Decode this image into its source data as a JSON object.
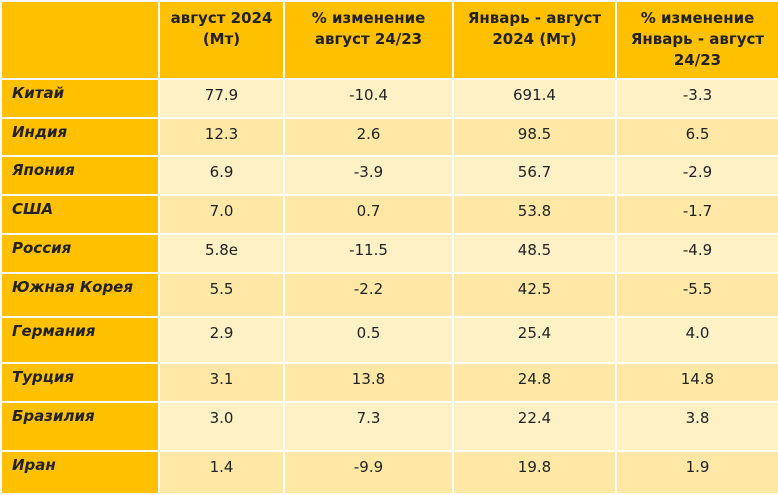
{
  "table": {
    "headers": [
      "август 2024 (Мт)",
      "% изменение август 24/23",
      "Январь - август 2024 (Мт)",
      "% изменение Январь - август 24/23"
    ],
    "rows": [
      {
        "name": "Китай",
        "cells": [
          "77.9",
          "-10.4",
          "691.4",
          "-3.3"
        ]
      },
      {
        "name": "Индия",
        "cells": [
          "12.3",
          "2.6",
          "98.5",
          "6.5"
        ]
      },
      {
        "name": "Япония",
        "cells": [
          "6.9",
          "-3.9",
          "56.7",
          "-2.9"
        ]
      },
      {
        "name": "США",
        "cells": [
          "7.0",
          "0.7",
          "53.8",
          "-1.7"
        ]
      },
      {
        "name": "Россия",
        "cells": [
          "5.8e",
          "-11.5",
          "48.5",
          "-4.9"
        ]
      },
      {
        "name": "Южная Корея",
        "cells": [
          "5.5",
          "-2.2",
          "42.5",
          "-5.5"
        ]
      },
      {
        "name": "Германия",
        "cells": [
          "2.9",
          "0.5",
          "25.4",
          "4.0"
        ]
      },
      {
        "name": "Турция",
        "cells": [
          "3.1",
          "13.8",
          "24.8",
          "14.8"
        ]
      },
      {
        "name": "Бразилия",
        "cells": [
          "3.0",
          "7.3",
          "22.4",
          "3.8"
        ]
      },
      {
        "name": "Иран",
        "cells": [
          "1.4",
          "-9.9",
          "19.8",
          "1.9"
        ]
      }
    ]
  }
}
